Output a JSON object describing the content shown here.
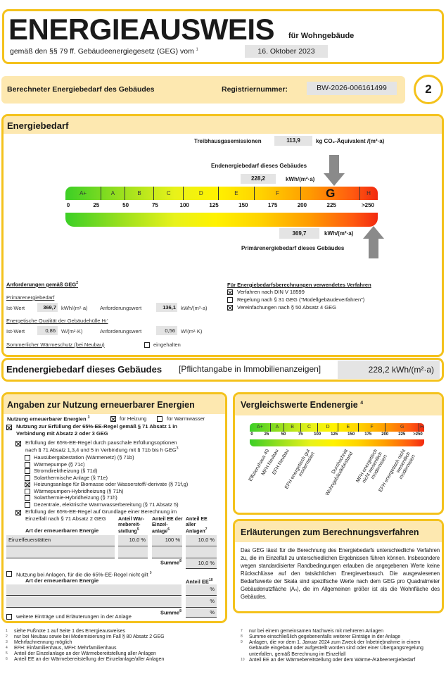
{
  "header": {
    "title": "ENERGIEAUSWEIS",
    "subtitle": "für Wohngebäude",
    "law": "gemäß den §§ 79 ff. Gebäudeenergiegesetz (GEG) vom",
    "law_fn": "1",
    "date": "16. Oktober 2023"
  },
  "regbar": {
    "label": "Berechneter Energiebedarf des Gebäudes",
    "reg_label": "Registriernummer:",
    "reg_value": "BW-2026-006161499",
    "page": "2"
  },
  "energy": {
    "title": "Energiebedarf",
    "ghg_label": "Treibhausgasemissionen",
    "ghg_value": "113,9",
    "ghg_unit": "kg CO₂-Äquivalent /(m²·a)",
    "end_label": "Endenergiebedarf dieses Gebäudes",
    "end_value": "228,2",
    "end_unit": "kWh/(m²·a)",
    "prim_label": "Primärenergiebedarf dieses Gebäudes",
    "prim_value": "369,7",
    "prim_unit": "kWh/(m²·a)",
    "current_class": "G",
    "end_numeric": 228.2,
    "prim_numeric": 369.7,
    "classes": [
      {
        "label": "A+",
        "from": 0,
        "to": 30
      },
      {
        "label": "A",
        "from": 30,
        "to": 50
      },
      {
        "label": "B",
        "from": 50,
        "to": 75
      },
      {
        "label": "C",
        "from": 75,
        "to": 100
      },
      {
        "label": "D",
        "from": 100,
        "to": 130
      },
      {
        "label": "E",
        "from": 130,
        "to": 160
      },
      {
        "label": "F",
        "from": 160,
        "to": 200
      },
      {
        "label": "G",
        "from": 200,
        "to": 250
      },
      {
        "label": "H",
        "from": 250,
        "to": 265
      }
    ],
    "ticks": [
      "0",
      "25",
      "50",
      "75",
      "100",
      "125",
      "150",
      "175",
      "200",
      "225",
      ">250"
    ]
  },
  "requirements": {
    "title": "Anforderungen gemäß GEG",
    "title_fn": "2",
    "primary_title": "Primärenergiebedarf",
    "ist_label": "Ist-Wert",
    "ist_value": "369,7",
    "ist_unit": "kWh/(m²·a)",
    "req_label": "Anforderungswert",
    "req_value": "136,1",
    "req_unit": "kWh/(m²·a)",
    "hull_title": "Energetische Qualität der Gebäudehülle Hₜ'",
    "hull_ist_label": "Ist-Wert",
    "hull_ist_value": "0,86",
    "hull_unit": "W/(m²·K)",
    "hull_req_label": "Anforderungswert",
    "hull_req_value": "0,56",
    "hull_req_unit": "W/(m²·K)",
    "summer_title": "Sommerlicher Wärmeschutz (bei Neubau)",
    "summer_check": "eingehalten",
    "summer_checked": false
  },
  "procedure": {
    "title": "Für Energiebedarfsberechnungen verwendetes Verfahren",
    "items": [
      {
        "label": "Verfahren nach DIN V 18599",
        "checked": true
      },
      {
        "label": "Regelung nach § 31 GEG (\"Modellgebäudeverfahren\")",
        "checked": false
      },
      {
        "label": "Vereinfachungen nach § 50 Absatz 4 GEG",
        "checked": true
      }
    ]
  },
  "final_row": {
    "label": "Endenergiebedarf dieses Gebäudes",
    "note": "[Pflichtangabe in Immobilienanzeigen]",
    "value": "228,2 kWh/(m²·a)"
  },
  "renewables": {
    "title": "Angaben zur Nutzung erneuerbarer Energien",
    "usage_label": "Nutzung erneuerbarer Energien",
    "usage_fn": "3",
    "heating": "für Heizung",
    "heating_checked": true,
    "water": "für Warmwasser",
    "water_checked": false,
    "rule_line1": "Nutzung zur Erfüllung der 65%-EE-Regel gemäß § 71 Absatz 1 in",
    "rule_line2": "Verbindung mit Absatz 2 oder 3 GEG",
    "flat_line1": "Erfüllung der 65%-EE-Regel durch pauschale Erfüllungsoptionen",
    "flat_line2": "nach § 71 Absatz 1,3,4 und 5 in Verbindung mit § 71b bis h GEG",
    "options": [
      {
        "label": "Hausübergabestation (Wärmenetz) (§ 71b)",
        "checked": false
      },
      {
        "label": "Wärmepumpe (§ 71c)",
        "checked": false
      },
      {
        "label": "Stromdirektheizung (§ 71d)",
        "checked": false
      },
      {
        "label": "Solarthermische Anlage (§ 71e)",
        "checked": false
      },
      {
        "label": "Heizungsanlage für Biomasse oder Wasserstoff/-derivate (§ 71f,g)",
        "checked": true
      },
      {
        "label": "Wärmepumpen-Hybridheizung (§ 71h)",
        "checked": false
      },
      {
        "label": "Solarthermie-Hybridheizung (§ 71h)",
        "checked": false
      },
      {
        "label": "Dezentrale, elektrische Warmwasserbereitung (§ 71 Absatz 5)",
        "checked": false
      }
    ],
    "calc_line1": "Erfüllung der 65%-EE-Regel auf Grundlage einer Berechnung im",
    "calc_line2": "Einzelfall nach § 71 Absatz 2 GEG",
    "table1": {
      "col_type": "Art der erneuerbaren Energie",
      "col_share_heat": "Anteil Wär- mebereit- stellung",
      "col_share_single": "Anteil EE der Einzel- anlage",
      "col_share_all": "Anteil EE aller Anlagen",
      "rows": [
        {
          "type": "Einzelfeuerstätten",
          "heat": "10,0  %",
          "single": "100  %",
          "all": "10,0  %"
        },
        {
          "type": "",
          "heat": "",
          "single": "",
          "all": ""
        }
      ],
      "sum_label": "Summe",
      "sum_value": "10,0  %"
    },
    "other_label": "Nutzung bei Anlagen, für die die 65%-EE-Regel nicht gilt",
    "table2": {
      "col_type": "Art der erneuerbaren Energie",
      "col_share": "Anteil EE",
      "rows": [
        "%",
        "%"
      ],
      "sum_label": "Summe",
      "sum_value": "%"
    },
    "more_label": "weitere Einträge und Erläuterungen in der Anlage"
  },
  "comparison": {
    "title": "Vergleichswerte Endenergie",
    "title_fn": "4",
    "classes": [
      "A+",
      "A",
      "B",
      "C",
      "D",
      "E",
      "F",
      "G",
      "H"
    ],
    "ticks": [
      "0",
      "25",
      "50",
      "75",
      "100",
      "125",
      "150",
      "175",
      "200",
      "225",
      ">250"
    ],
    "refs": [
      "Effizienzhaus 40",
      "MFH Neubau",
      "EFH Neubau",
      "EFH energetisch gut modernisiert",
      "Durchschnitt Wohngebäudebestand",
      "MFH energetisch nicht wesentlich modernisiert",
      "EFH energetisch nicht wesentlich modernisiert"
    ]
  },
  "explanation": {
    "title": "Erläuterungen zum Berechnungsverfahren",
    "text": "Das GEG lässt für die Berechnung des Energiebedarfs unterschiedliche Verfahren zu, die im Einzelfall zu unterschiedlichen Ergebnissen führen können. Insbesondere wegen standardisierter Randbedingungen erlauben die angegebenen Werte keine Rückschlüsse auf den tatsächlichen Energieverbrauch. Die ausgewiesenen Bedarfswerte der Skala sind spezifische Werte nach dem GEG pro Quadratmeter Gebäudenutzfläche (Aₙ), die im Allgemeinen größer ist als die Wohnfläche des Gebäudes."
  },
  "footnotes_left": [
    {
      "n": "1",
      "t": "siehe Fußnote 1 auf Seite 1 des Energieausweises"
    },
    {
      "n": "2",
      "t": "nur bei Neubau sowie bei Modernisierung im Fall § 80 Absatz 2 GEG"
    },
    {
      "n": "3",
      "t": "Mehrfachnennung möglich"
    },
    {
      "n": "4",
      "t": "EFH: Einfamilienhaus, MFH: Mehrfamilienhaus"
    },
    {
      "n": "5",
      "t": "Anteil der Einzelanlage an der Wärmebereitstellung aller Anlagen"
    },
    {
      "n": "6",
      "t": "Anteil EE an der Wärmebereitstellung der Einzelanlage/aller Anlagen"
    }
  ],
  "footnotes_right": [
    {
      "n": "7",
      "t": "nur bei einem gemeinsamen Nachweis mit mehreren Anlagen"
    },
    {
      "n": "8",
      "t": "Summe einschließlich gegebenenfalls weiterer Einträge in der Anlage"
    },
    {
      "n": "9",
      "t": "Anlagen, die vor dem 1. Januar 2024 zum Zweck der Inbetriebnahme in einem Gebäude eingebaut oder aufgestellt worden sind oder einer Übergangsregelung unterfallen, gemäß Berechnung im Einzelfall"
    },
    {
      "n": "10",
      "t": "Anteil EE an der Wärmebereitstellung oder dem Wärme-/Kälteenergiebedarf"
    }
  ],
  "colors": {
    "frame": "#f4c21c",
    "header_bg": "#fde8b0",
    "field_bg": "#e4e4e4",
    "arrow": "#8a8a8a"
  }
}
